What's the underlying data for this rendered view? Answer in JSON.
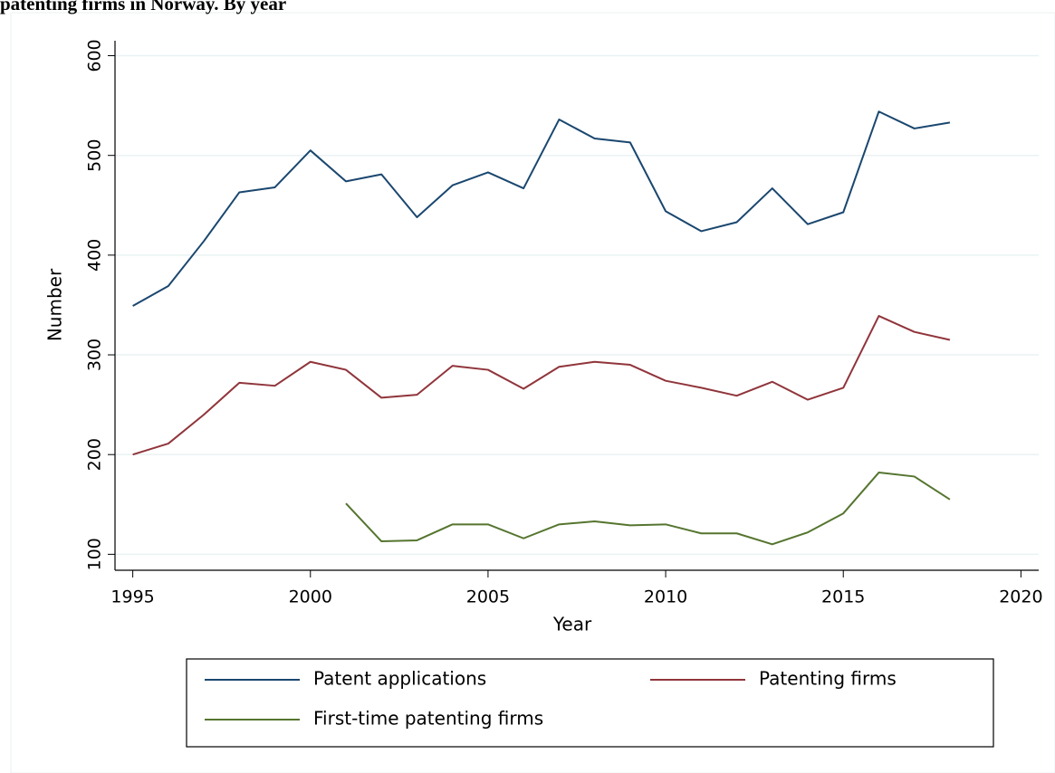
{
  "chart_data": {
    "type": "line",
    "title": "patenting firms in Norway. By year",
    "x_label": "Year",
    "y_label": "Number",
    "x": [
      1995,
      1996,
      1997,
      1998,
      1999,
      2000,
      2001,
      2002,
      2003,
      2004,
      2005,
      2006,
      2007,
      2008,
      2009,
      2010,
      2011,
      2012,
      2013,
      2014,
      2015,
      2016,
      2017,
      2018
    ],
    "series": [
      {
        "name": "Patent applications",
        "color": "#1a476f",
        "values": [
          349,
          369,
          414,
          463,
          468,
          505,
          474,
          481,
          438,
          470,
          483,
          467,
          536,
          517,
          513,
          444,
          424,
          433,
          467,
          431,
          443,
          544,
          527,
          533
        ]
      },
      {
        "name": "Patenting firms",
        "color": "#90353b",
        "values": [
          200,
          211,
          240,
          272,
          269,
          293,
          285,
          257,
          260,
          289,
          285,
          266,
          288,
          293,
          290,
          274,
          267,
          259,
          273,
          255,
          267,
          339,
          323,
          315
        ]
      },
      {
        "name": "First-time patenting firms",
        "color": "#55752f",
        "values": [
          null,
          null,
          null,
          null,
          null,
          null,
          151,
          113,
          114,
          130,
          130,
          116,
          130,
          133,
          129,
          130,
          121,
          121,
          110,
          122,
          141,
          182,
          178,
          155
        ]
      }
    ],
    "xlim": [
      1994.5,
      2020.5
    ],
    "xticks": [
      1995,
      2000,
      2005,
      2010,
      2015,
      2020
    ],
    "ylim": [
      84,
      615
    ],
    "yticks": [
      100,
      200,
      300,
      400,
      500,
      600
    ],
    "grid": true,
    "legend": "bottom"
  }
}
